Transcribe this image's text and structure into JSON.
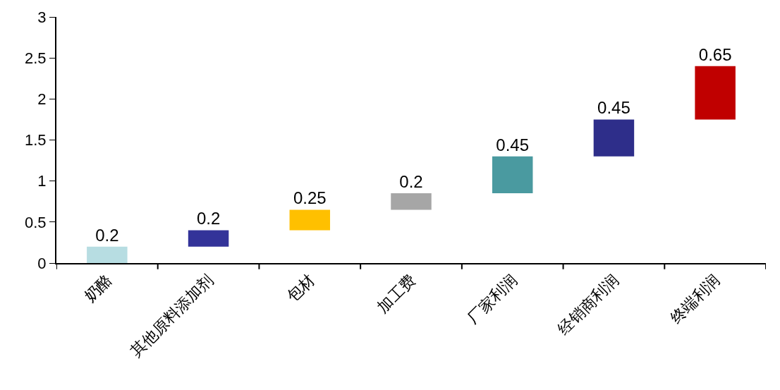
{
  "chart_data": {
    "type": "bar",
    "categories": [
      "奶酪",
      "其他原料添加剂",
      "包材",
      "加工费",
      "厂家利润",
      "经销商利润",
      "终端利润"
    ],
    "values": [
      0.2,
      0.2,
      0.25,
      0.2,
      0.45,
      0.45,
      0.65
    ],
    "base": [
      0,
      0.2,
      0.4,
      0.65,
      0.85,
      1.3,
      1.75
    ],
    "colors": [
      "#b7dde2",
      "#333399",
      "#ffc000",
      "#a6a6a6",
      "#4a9aa0",
      "#2e2e8a",
      "#c00000"
    ],
    "ylim": [
      0,
      3
    ],
    "yticks": [
      0,
      0.5,
      1,
      1.5,
      2,
      2.5,
      3
    ],
    "data_labels": true
  }
}
